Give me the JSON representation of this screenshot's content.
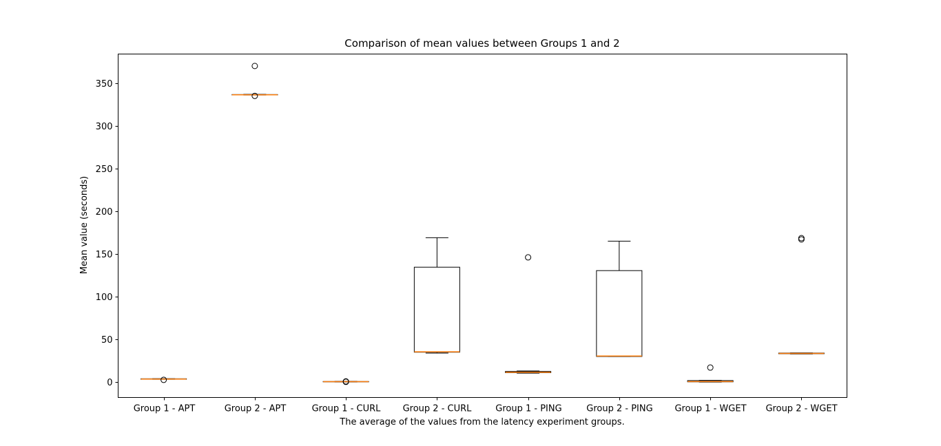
{
  "chart_data": {
    "type": "box",
    "title": "Comparison of mean values between Groups 1 and 2",
    "xlabel": "The average of the values from the latency experiment groups.",
    "ylabel": "Mean value (seconds)",
    "ylim": [
      -18,
      384
    ],
    "yticks": [
      0,
      50,
      100,
      150,
      200,
      250,
      300,
      350
    ],
    "categories": [
      "Group 1 - APT",
      "Group 2 - APT",
      "Group 1 - CURL",
      "Group 2 - CURL",
      "Group 1 - PING",
      "Group 2 - PING",
      "Group 1 - WGET",
      "Group 2 - WGET"
    ],
    "boxes": [
      {
        "whisker_low": 3.2,
        "q1": 3.3,
        "median": 3.6,
        "q3": 3.9,
        "whisker_high": 4.0,
        "outliers": [
          2.6
        ]
      },
      {
        "whisker_low": 336.0,
        "q1": 336.1,
        "median": 336.3,
        "q3": 336.6,
        "whisker_high": 336.8,
        "outliers": [
          370.0,
          335.0
        ]
      },
      {
        "whisker_low": 0.1,
        "q1": 0.3,
        "median": 0.5,
        "q3": 0.7,
        "whisker_high": 0.9,
        "outliers": [
          0.8,
          0.3
        ]
      },
      {
        "whisker_low": 34.0,
        "q1": 35.0,
        "median": 35.5,
        "q3": 134.5,
        "whisker_high": 169.0,
        "outliers": []
      },
      {
        "whisker_low": 10.5,
        "q1": 11.0,
        "median": 11.5,
        "q3": 12.5,
        "whisker_high": 13.0,
        "outliers": [
          146.0
        ]
      },
      {
        "whisker_low": 30.0,
        "q1": 30.0,
        "median": 30.5,
        "q3": 130.5,
        "whisker_high": 165.0,
        "outliers": []
      },
      {
        "whisker_low": 0.0,
        "q1": 0.3,
        "median": 0.6,
        "q3": 1.8,
        "whisker_high": 2.0,
        "outliers": [
          17.0
        ]
      },
      {
        "whisker_low": 33.0,
        "q1": 33.2,
        "median": 33.6,
        "q3": 34.0,
        "whisker_high": 34.2,
        "outliers": [
          167.0,
          168.5
        ]
      }
    ],
    "colors": {
      "box": "#000000",
      "median": "#ff7f0e",
      "background": "#ffffff"
    },
    "grid": false,
    "legend": "none"
  }
}
